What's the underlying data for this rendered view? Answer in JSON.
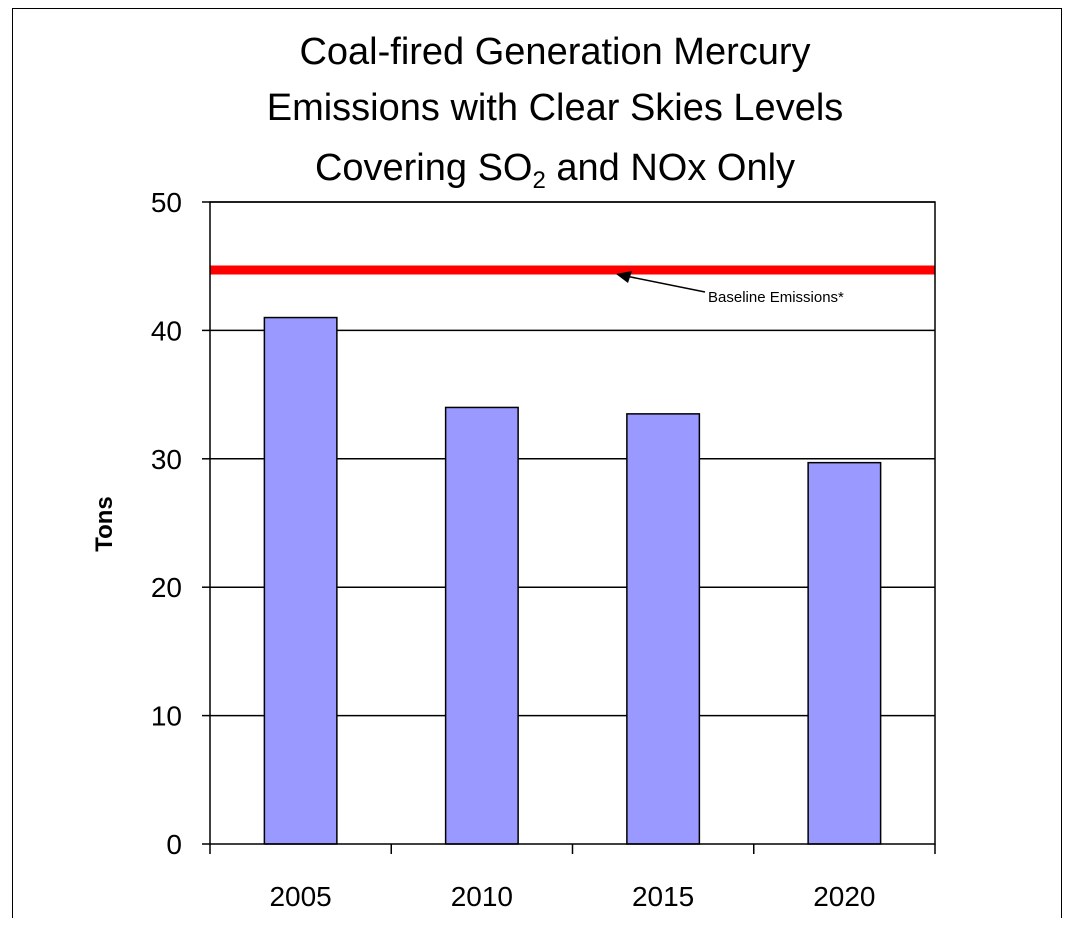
{
  "chart_data": {
    "type": "bar",
    "title": [
      "Coal-fired Generation Mercury",
      "Emissions with Clear Skies Levels",
      "Covering SO",
      "2",
      " and NOx Only"
    ],
    "xlabel": "",
    "ylabel": "Tons",
    "categories": [
      "2005",
      "2010",
      "2015",
      "2020"
    ],
    "values": [
      41,
      34,
      33.5,
      29.7
    ],
    "ylim": [
      0,
      50
    ],
    "yticks": [
      "0",
      "10",
      "20",
      "30",
      "40",
      "50"
    ],
    "grid": true,
    "bar_color": "#9999ff",
    "reference_line": {
      "value": 44.7,
      "color": "#ff0000",
      "label": "Baseline Emissions*"
    }
  }
}
